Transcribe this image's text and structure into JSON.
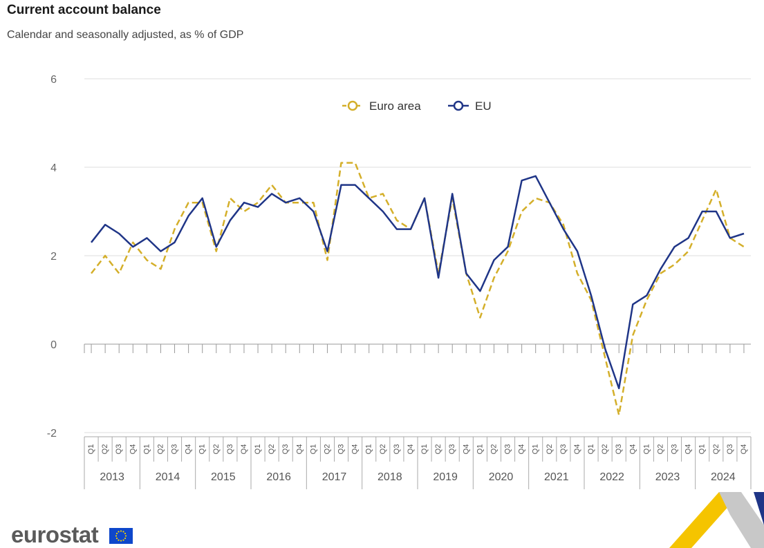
{
  "header": {
    "title": "Current account balance",
    "subtitle": "Calendar and seasonally adjusted, as % of GDP"
  },
  "brand": {
    "name": "eurostat"
  },
  "chart_data": {
    "type": "line",
    "title": "Current account balance",
    "subtitle": "Calendar and seasonally adjusted, as % of GDP",
    "xlabel": "",
    "ylabel": "",
    "ylim": [
      -2,
      6
    ],
    "yticks": [
      -2,
      0,
      2,
      4,
      6
    ],
    "grid": true,
    "legend": "top-center",
    "quarters": [
      "Q1",
      "Q2",
      "Q3",
      "Q4"
    ],
    "years": [
      "2013",
      "2014",
      "2015",
      "2016",
      "2017",
      "2018",
      "2019",
      "2020",
      "2021",
      "2022",
      "2023",
      "2024"
    ],
    "series": [
      {
        "name": "Euro area",
        "color": "#D4AF2A",
        "style": "dashed",
        "values": [
          1.6,
          2.0,
          1.6,
          2.3,
          1.9,
          1.7,
          2.6,
          3.2,
          3.2,
          2.1,
          3.3,
          3.0,
          3.2,
          3.6,
          3.2,
          3.2,
          3.2,
          1.9,
          4.1,
          4.1,
          3.3,
          3.4,
          2.8,
          2.6,
          3.3,
          1.6,
          3.3,
          1.6,
          0.6,
          1.5,
          2.1,
          3.0,
          3.3,
          3.2,
          2.7,
          1.6,
          1.0,
          -0.3,
          -1.6,
          0.2,
          1.0,
          1.6,
          1.8,
          2.1,
          2.8,
          3.5,
          2.4,
          2.2
        ]
      },
      {
        "name": "EU",
        "color": "#1F3587",
        "style": "solid",
        "values": [
          2.3,
          2.7,
          2.5,
          2.2,
          2.4,
          2.1,
          2.3,
          2.9,
          3.3,
          2.2,
          2.8,
          3.2,
          3.1,
          3.4,
          3.2,
          3.3,
          3.0,
          2.1,
          3.6,
          3.6,
          3.3,
          3.0,
          2.6,
          2.6,
          3.3,
          1.5,
          3.4,
          1.6,
          1.2,
          1.9,
          2.2,
          3.7,
          3.8,
          3.2,
          2.6,
          2.1,
          1.1,
          -0.1,
          -1.0,
          0.9,
          1.1,
          1.7,
          2.2,
          2.4,
          3.0,
          3.0,
          2.4,
          2.5
        ]
      }
    ]
  }
}
